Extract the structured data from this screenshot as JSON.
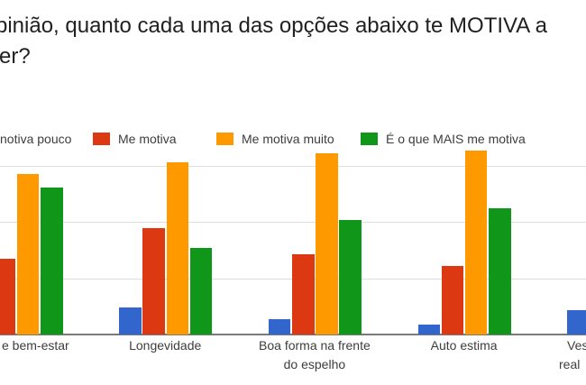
{
  "title": {
    "line1": "pinião, quanto cada uma das opções abaixo te MOTIVA a",
    "line2": "er?"
  },
  "legend": {
    "position": "top",
    "items": [
      {
        "label": "notiva pouco",
        "color": "#3366cc"
      },
      {
        "label": "Me motiva",
        "color": "#dc3912"
      },
      {
        "label": "Me motiva muito",
        "color": "#ff9900"
      },
      {
        "label": "É o que MAIS me motiva",
        "color": "#109618"
      }
    ]
  },
  "x_axis_labels": [
    {
      "text": "e bem-estar"
    },
    {
      "text": "Longevidade"
    },
    {
      "text": "Boa forma na frente"
    },
    {
      "text": "do espelho"
    },
    {
      "text": "Auto estima"
    },
    {
      "text": "Ves"
    },
    {
      "text": "real"
    }
  ],
  "chart_data": {
    "type": "bar",
    "title": "pinião, quanto cada uma das opções abaixo te MOTIVA a …er?",
    "categories": [
      "e bem-estar",
      "Longevidade",
      "Boa forma na frente do espelho",
      "Auto estima",
      "Ves / real"
    ],
    "series": [
      {
        "name": "notiva pouco",
        "color": "#3366cc",
        "values": [
          null,
          2.4,
          1.4,
          0.9,
          2.2
        ]
      },
      {
        "name": "Me motiva",
        "color": "#dc3912",
        "values": [
          6.7,
          9.5,
          7.1,
          6.1,
          null
        ]
      },
      {
        "name": "Me motiva muito",
        "color": "#ff9900",
        "values": [
          14.3,
          15.3,
          16.1,
          16.4,
          null
        ]
      },
      {
        "name": "É o que MAIS me motiva",
        "color": "#109618",
        "values": [
          13.1,
          7.7,
          10.2,
          11.2,
          null
        ]
      }
    ],
    "y_axis": {
      "tick_labels_visible": false,
      "gridlines_at": [
        5,
        10,
        15
      ],
      "ylim": [
        0,
        20
      ],
      "estimation_note": "y-axis tick labels are cropped out of frame; values estimated from unlabeled gridlines assuming a step of 5"
    },
    "legend_position": "top",
    "grid": true,
    "crop_note": "screenshot cropped at left and right: start of title and first legend swatch, group-1 blue bar, group-5 red/orange/green bars and full right-side labels are out of frame"
  },
  "colors": {
    "background": "#ffffff",
    "title_text": "#212121",
    "label_text": "#3d3d3d",
    "gridline": "#dedede",
    "axis_line": "#7a7a7a"
  }
}
